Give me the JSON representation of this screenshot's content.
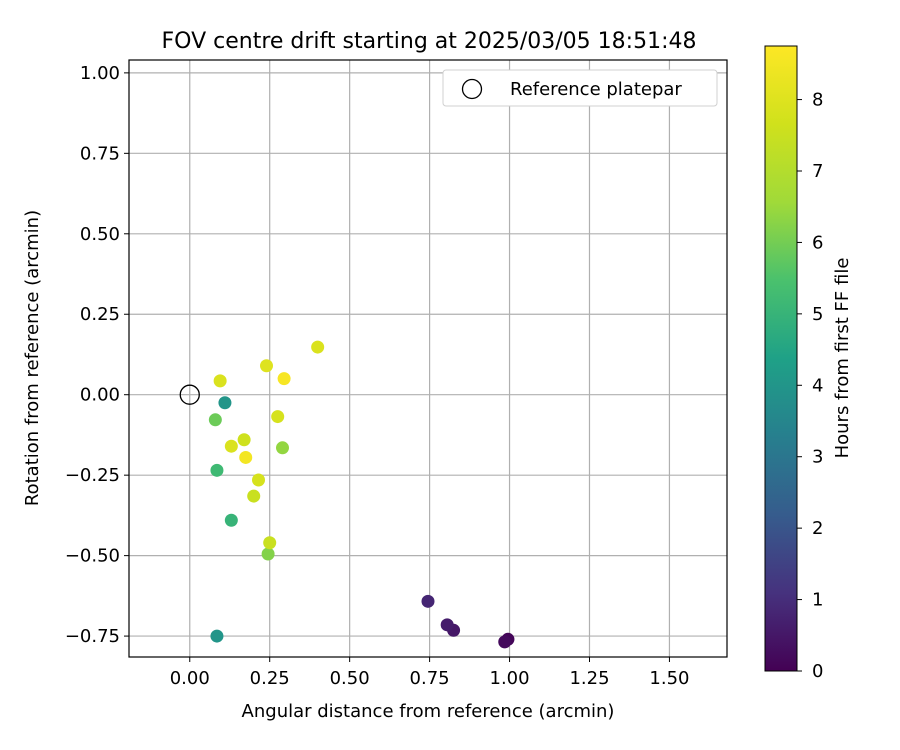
{
  "chart_data": {
    "type": "scatter",
    "title": "FOV centre drift starting at 2025/03/05 18:51:48",
    "xlabel": "Angular distance from reference (arcmin)",
    "ylabel": "Rotation from reference (arcmin)",
    "xlim": [
      -0.19,
      1.68
    ],
    "ylim": [
      -0.815,
      1.04
    ],
    "xticks": [
      "0.00",
      "0.25",
      "0.50",
      "0.75",
      "1.00",
      "1.25",
      "1.50"
    ],
    "yticks": [
      "−0.75",
      "−0.50",
      "−0.25",
      "0.00",
      "0.25",
      "0.50",
      "0.75",
      "1.00"
    ],
    "grid": true,
    "legend": {
      "placement": "top-right",
      "entries": [
        "Reference platepar"
      ]
    },
    "reference_point": {
      "x": 0.0,
      "y": 0.0,
      "marker": "open-circle"
    },
    "colormap": "viridis",
    "colorbar": {
      "label": "Hours from first FF file",
      "range": [
        0,
        8.75
      ],
      "ticks": [
        "0",
        "1",
        "2",
        "3",
        "4",
        "5",
        "6",
        "7",
        "8"
      ]
    },
    "series": [
      {
        "points": [
          {
            "x": 0.995,
            "y": -0.76,
            "c": 0.1
          },
          {
            "x": 0.985,
            "y": -0.768,
            "c": 0.2
          },
          {
            "x": 0.825,
            "y": -0.732,
            "c": 0.5
          },
          {
            "x": 0.805,
            "y": -0.715,
            "c": 0.6
          },
          {
            "x": 0.745,
            "y": -0.642,
            "c": 0.8
          },
          {
            "x": 0.085,
            "y": -0.75,
            "c": 4.0
          },
          {
            "x": 0.11,
            "y": -0.025,
            "c": 4.0
          },
          {
            "x": 0.13,
            "y": -0.39,
            "c": 5.0
          },
          {
            "x": 0.085,
            "y": -0.235,
            "c": 5.2
          },
          {
            "x": 0.08,
            "y": -0.078,
            "c": 5.9
          },
          {
            "x": 0.245,
            "y": -0.495,
            "c": 6.2
          },
          {
            "x": 0.29,
            "y": -0.165,
            "c": 6.4
          },
          {
            "x": 0.25,
            "y": -0.46,
            "c": 7.5
          },
          {
            "x": 0.2,
            "y": -0.315,
            "c": 7.5
          },
          {
            "x": 0.215,
            "y": -0.265,
            "c": 7.8
          },
          {
            "x": 0.17,
            "y": -0.14,
            "c": 7.6
          },
          {
            "x": 0.13,
            "y": -0.16,
            "c": 7.9
          },
          {
            "x": 0.4,
            "y": 0.148,
            "c": 7.9
          },
          {
            "x": 0.275,
            "y": -0.068,
            "c": 7.8
          },
          {
            "x": 0.095,
            "y": 0.043,
            "c": 7.9
          },
          {
            "x": 0.24,
            "y": 0.09,
            "c": 8.0
          },
          {
            "x": 0.175,
            "y": -0.195,
            "c": 8.5
          },
          {
            "x": 0.295,
            "y": 0.05,
            "c": 8.6
          }
        ]
      }
    ]
  }
}
